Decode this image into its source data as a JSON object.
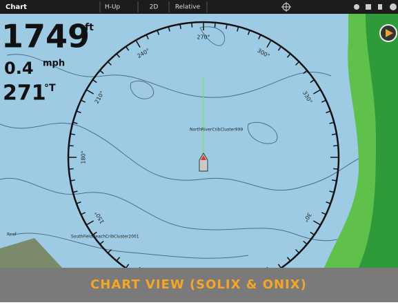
{
  "topbar": {
    "title": "Chart",
    "buttons": [
      "H-Up",
      "2D",
      "Relative"
    ]
  },
  "readouts": {
    "depth": {
      "value": "1749",
      "unit": "ft"
    },
    "speed": {
      "value": "0.4",
      "unit": "mph"
    },
    "heading": {
      "value": "271",
      "unit": "°T"
    }
  },
  "compass": {
    "labels": [
      "270°",
      "240°",
      "300°",
      "210°",
      "330°",
      "180°",
      "150°",
      "30°"
    ]
  },
  "map": {
    "waypoints": [
      "NorthRiverCribCluster999",
      "SouthFieldBeachCribCluster2001",
      "Reef"
    ]
  },
  "caption": "CHART VIEW (SOLIX & ONIX)"
}
